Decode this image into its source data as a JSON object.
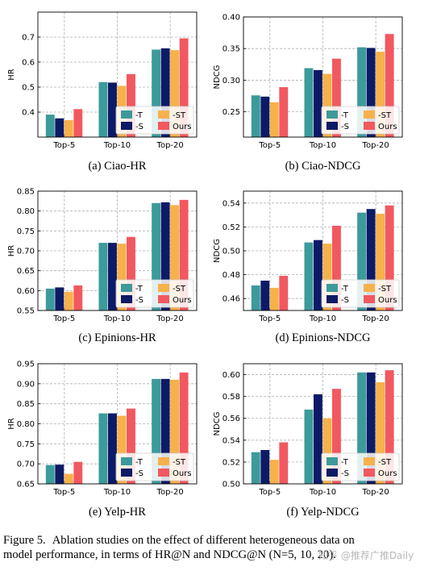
{
  "colors": {
    "-T": "#3d9a9a",
    "-S": "#0d1a66",
    "-ST": "#f7b14a",
    "Ours": "#f2585f"
  },
  "legend": [
    "-T",
    "-ST",
    "-S",
    "Ours"
  ],
  "categories": [
    "Top-5",
    "Top-10",
    "Top-20"
  ],
  "chart_data": [
    {
      "type": "bar",
      "subtitle": "(a)  Ciao-HR",
      "ylabel": "HR",
      "ylim": [
        0.3,
        0.8
      ],
      "yticks": [
        "0.4",
        "0.5",
        "0.6",
        "0.7"
      ],
      "ytick_values": [
        0.4,
        0.5,
        0.6,
        0.7
      ],
      "categories": [
        "Top-5",
        "Top-10",
        "Top-20"
      ],
      "grid": true,
      "legend_position": "lower-right",
      "series": [
        {
          "name": "-T",
          "values": [
            0.39,
            0.52,
            0.65
          ]
        },
        {
          "name": "-S",
          "values": [
            0.375,
            0.518,
            0.655
          ]
        },
        {
          "name": "-ST",
          "values": [
            0.368,
            0.505,
            0.648
          ]
        },
        {
          "name": "Ours",
          "values": [
            0.412,
            0.552,
            0.695
          ]
        }
      ]
    },
    {
      "type": "bar",
      "subtitle": "(b)  Ciao-NDCG",
      "ylabel": "NDCG",
      "ylim": [
        0.21,
        0.4
      ],
      "yticks": [
        "0.25",
        "0.30",
        "0.35",
        "0.40"
      ],
      "ytick_values": [
        0.25,
        0.3,
        0.35,
        0.4
      ],
      "categories": [
        "Top-5",
        "Top-10",
        "Top-20"
      ],
      "grid": true,
      "legend_position": "lower-right",
      "series": [
        {
          "name": "-T",
          "values": [
            0.276,
            0.319,
            0.352
          ]
        },
        {
          "name": "-S",
          "values": [
            0.274,
            0.316,
            0.351
          ]
        },
        {
          "name": "-ST",
          "values": [
            0.265,
            0.31,
            0.345
          ]
        },
        {
          "name": "Ours",
          "values": [
            0.289,
            0.334,
            0.373
          ]
        }
      ]
    },
    {
      "type": "bar",
      "subtitle": "(c)  Epinions-HR",
      "ylabel": "HR",
      "ylim": [
        0.55,
        0.85
      ],
      "yticks": [
        "0.55",
        "0.60",
        "0.65",
        "0.70",
        "0.75",
        "0.80",
        "0.85"
      ],
      "ytick_values": [
        0.55,
        0.6,
        0.65,
        0.7,
        0.75,
        0.8,
        0.85
      ],
      "categories": [
        "Top-5",
        "Top-10",
        "Top-20"
      ],
      "grid": true,
      "legend_position": "lower-right",
      "series": [
        {
          "name": "-T",
          "values": [
            0.605,
            0.72,
            0.82
          ]
        },
        {
          "name": "-S",
          "values": [
            0.608,
            0.72,
            0.822
          ]
        },
        {
          "name": "-ST",
          "values": [
            0.597,
            0.718,
            0.815
          ]
        },
        {
          "name": "Ours",
          "values": [
            0.613,
            0.735,
            0.828
          ]
        }
      ]
    },
    {
      "type": "bar",
      "subtitle": "(d)  Epinions-NDCG",
      "ylabel": "NDCG",
      "ylim": [
        0.45,
        0.55
      ],
      "yticks": [
        "0.46",
        "0.48",
        "0.50",
        "0.52",
        "0.54"
      ],
      "ytick_values": [
        0.46,
        0.48,
        0.5,
        0.52,
        0.54
      ],
      "categories": [
        "Top-5",
        "Top-10",
        "Top-20"
      ],
      "grid": true,
      "legend_position": "lower-right",
      "series": [
        {
          "name": "-T",
          "values": [
            0.471,
            0.507,
            0.532
          ]
        },
        {
          "name": "-S",
          "values": [
            0.475,
            0.509,
            0.535
          ]
        },
        {
          "name": "-ST",
          "values": [
            0.469,
            0.506,
            0.531
          ]
        },
        {
          "name": "Ours",
          "values": [
            0.479,
            0.521,
            0.538
          ]
        }
      ]
    },
    {
      "type": "bar",
      "subtitle": "(e)  Yelp-HR",
      "ylabel": "HR",
      "ylim": [
        0.65,
        0.95
      ],
      "yticks": [
        "0.65",
        "0.70",
        "0.75",
        "0.80",
        "0.85",
        "0.90",
        "0.95"
      ],
      "ytick_values": [
        0.65,
        0.7,
        0.75,
        0.8,
        0.85,
        0.9,
        0.95
      ],
      "categories": [
        "Top-5",
        "Top-10",
        "Top-20"
      ],
      "grid": true,
      "legend_position": "lower-right",
      "series": [
        {
          "name": "-T",
          "values": [
            0.697,
            0.826,
            0.912
          ]
        },
        {
          "name": "-S",
          "values": [
            0.698,
            0.826,
            0.912
          ]
        },
        {
          "name": "-ST",
          "values": [
            0.675,
            0.82,
            0.91
          ]
        },
        {
          "name": "Ours",
          "values": [
            0.705,
            0.838,
            0.928
          ]
        }
      ]
    },
    {
      "type": "bar",
      "subtitle": "(f)  Yelp-NDCG",
      "ylabel": "NDCG",
      "ylim": [
        0.5,
        0.61
      ],
      "yticks": [
        "0.50",
        "0.52",
        "0.54",
        "0.56",
        "0.58",
        "0.60"
      ],
      "ytick_values": [
        0.5,
        0.52,
        0.54,
        0.56,
        0.58,
        0.6
      ],
      "categories": [
        "Top-5",
        "Top-10",
        "Top-20"
      ],
      "grid": true,
      "legend_position": "lower-right",
      "series": [
        {
          "name": "-T",
          "values": [
            0.529,
            0.568,
            0.602
          ]
        },
        {
          "name": "-S",
          "values": [
            0.531,
            0.582,
            0.602
          ]
        },
        {
          "name": "-ST",
          "values": [
            0.522,
            0.56,
            0.593
          ]
        },
        {
          "name": "Ours",
          "values": [
            0.538,
            0.587,
            0.604
          ]
        }
      ]
    }
  ],
  "caption": {
    "label": "Figure 5.",
    "line1": "Ablation studies on the effect of different heterogeneous data on",
    "line2": "model performance, in terms of HR@N and NDCG@N (N=5, 10, 20)."
  },
  "watermark": "知乎 @推荐广推Daily"
}
